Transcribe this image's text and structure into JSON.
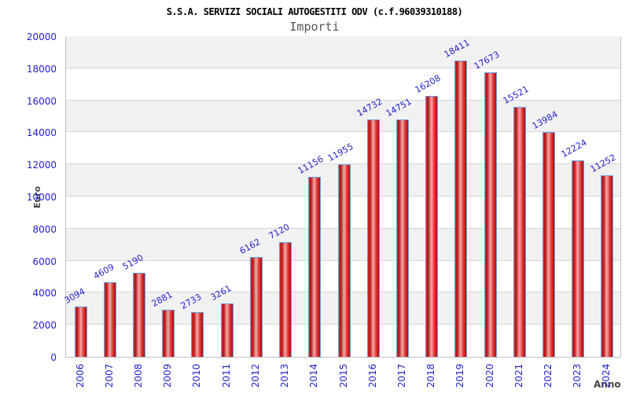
{
  "chart_data": {
    "type": "bar",
    "title": "S.S.A. SERVIZI SOCIALI AUTOGESTITI ODV (c.f.96039310188)",
    "subtitle": "Importi",
    "xlabel": "Anno",
    "ylabel": "Euro",
    "categories": [
      "2006",
      "2007",
      "2008",
      "2009",
      "2010",
      "2011",
      "2012",
      "2013",
      "2014",
      "2015",
      "2016",
      "2017",
      "2018",
      "2019",
      "2020",
      "2021",
      "2022",
      "2023",
      "2024"
    ],
    "values": [
      3094,
      4609,
      5190,
      2881,
      2733,
      3261,
      6162,
      7120,
      11156,
      11955,
      14732,
      14751,
      16208,
      18411,
      17673,
      15521,
      13984,
      12224,
      11252
    ],
    "ylim": [
      0,
      20000
    ],
    "ytick_step": 2000,
    "y_tick_labels": [
      "0",
      "2000",
      "4000",
      "6000",
      "8000",
      "10000",
      "12000",
      "14000",
      "16000",
      "18000",
      "20000"
    ],
    "grid": "horizontal-bands",
    "legend": "none",
    "colors": {
      "bar_fill_dark": "#b00d0d",
      "bar_fill_mid": "#dd3333",
      "bar_fill_light": "#f8a8a8",
      "bar_border": "#66a0dd",
      "tick_label": "#2222cc",
      "value_label": "#2222cc",
      "title": "#000000",
      "subtitle": "#555555",
      "axis_title": "#444444",
      "band_gray": "#f1f1f1",
      "grid_line": "#d6d6d6",
      "plot_border": "#c0c0c0"
    }
  }
}
